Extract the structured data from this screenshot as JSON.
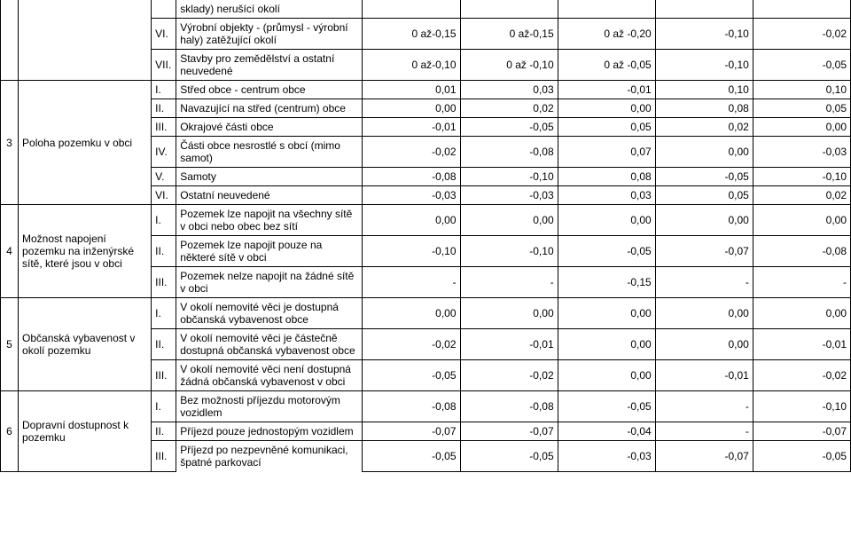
{
  "sections": [
    {
      "idx": "",
      "main": "",
      "rows": [
        {
          "sub": "",
          "desc": "sklady) nerušící okolí",
          "v": [
            "",
            "",
            "",
            "",
            ""
          ]
        },
        {
          "sub": "VI.",
          "desc": "Výrobní objekty - (průmysl - výrobní haly) zatěžující okolí",
          "v": [
            "0 až-0,15",
            "0 až-0,15",
            "0 až -0,20",
            "-0,10",
            "-0,02"
          ]
        },
        {
          "sub": "VII.",
          "desc": "Stavby pro zemědělství a ostatní neuvedené",
          "v": [
            "0 až-0,10",
            "0 až -0,10",
            "0 až -0,05",
            "-0,10",
            "-0,05"
          ]
        }
      ]
    },
    {
      "idx": "3",
      "main": "Poloha pozemku v obci",
      "rows": [
        {
          "sub": "I.",
          "desc": "Střed obce - centrum obce",
          "v": [
            "0,01",
            "0,03",
            "-0,01",
            "0,10",
            "0,10"
          ]
        },
        {
          "sub": "II.",
          "desc": "Navazující na střed (centrum) obce",
          "v": [
            "0,00",
            "0,02",
            "0,00",
            "0,08",
            "0,05"
          ]
        },
        {
          "sub": "III.",
          "desc": "Okrajové části obce",
          "v": [
            "-0,01",
            "-0,05",
            "0,05",
            "0,02",
            "0,00"
          ]
        },
        {
          "sub": "IV.",
          "desc": "Části obce nesrostlé s obcí (mimo samot)",
          "v": [
            "-0,02",
            "-0,08",
            "0,07",
            "0,00",
            "-0,03"
          ]
        },
        {
          "sub": "V.",
          "desc": "Samoty",
          "v": [
            "-0,08",
            "-0,10",
            "0,08",
            "-0,05",
            "-0,10"
          ]
        },
        {
          "sub": "VI.",
          "desc": "Ostatní neuvedené",
          "v": [
            "-0,03",
            "-0,03",
            "0,03",
            "0,05",
            "0,02"
          ]
        }
      ]
    },
    {
      "idx": "4",
      "main": "Možnost napojení pozemku na inženýrské sítě, které jsou v obci",
      "rows": [
        {
          "sub": "I.",
          "desc": "Pozemek lze napojit na všechny sítě v obci nebo obec bez sítí",
          "v": [
            "0,00",
            "0,00",
            "0,00",
            "0,00",
            "0,00"
          ]
        },
        {
          "sub": "II.",
          "desc": "Pozemek lze napojit pouze na některé sítě v obci",
          "v": [
            "-0,10",
            "-0,10",
            "-0,05",
            "-0,07",
            "-0,08"
          ]
        },
        {
          "sub": "III.",
          "desc": "Pozemek nelze napojit na žádné sítě v obci",
          "v": [
            "-",
            "-",
            "-0,15",
            "-",
            "-"
          ]
        }
      ]
    },
    {
      "idx": "5",
      "main": "Občanská vybavenost v okolí pozemku",
      "rows": [
        {
          "sub": "I.",
          "desc": "V okolí nemovité věci je dostupná občanská vybavenost obce",
          "v": [
            "0,00",
            "0,00",
            "0,00",
            "0,00",
            "0,00"
          ]
        },
        {
          "sub": "II.",
          "desc": "V okolí nemovité věci je částečně dostupná občanská vybavenost obce",
          "v": [
            "-0,02",
            "-0,01",
            "0,00",
            "0,00",
            "-0,01"
          ]
        },
        {
          "sub": "III.",
          "desc": "V okolí nemovité věci není dostupná žádná občanská vybavenost v obci",
          "v": [
            "-0,05",
            "-0,02",
            "0,00",
            "-0,01",
            "-0,02"
          ]
        }
      ]
    },
    {
      "idx": "6",
      "main": "Dopravní dostupnost k pozemku",
      "rows": [
        {
          "sub": "I.",
          "desc": "Bez možnosti příjezdu motorovým vozidlem",
          "v": [
            "-0,08",
            "-0,08",
            "-0,05",
            "-",
            "-0,10"
          ]
        },
        {
          "sub": "II.",
          "desc": "Příjezd pouze jednostopým vozidlem",
          "v": [
            "-0,07",
            "-0,07",
            "-0,04",
            "-",
            "-0,07"
          ]
        },
        {
          "sub": "III.",
          "desc": "Příjezd po nezpevněné komunikaci, špatné parkovací",
          "v": [
            "-0,05",
            "-0,05",
            "-0,03",
            "-0,07",
            "-0,05"
          ]
        }
      ]
    }
  ]
}
